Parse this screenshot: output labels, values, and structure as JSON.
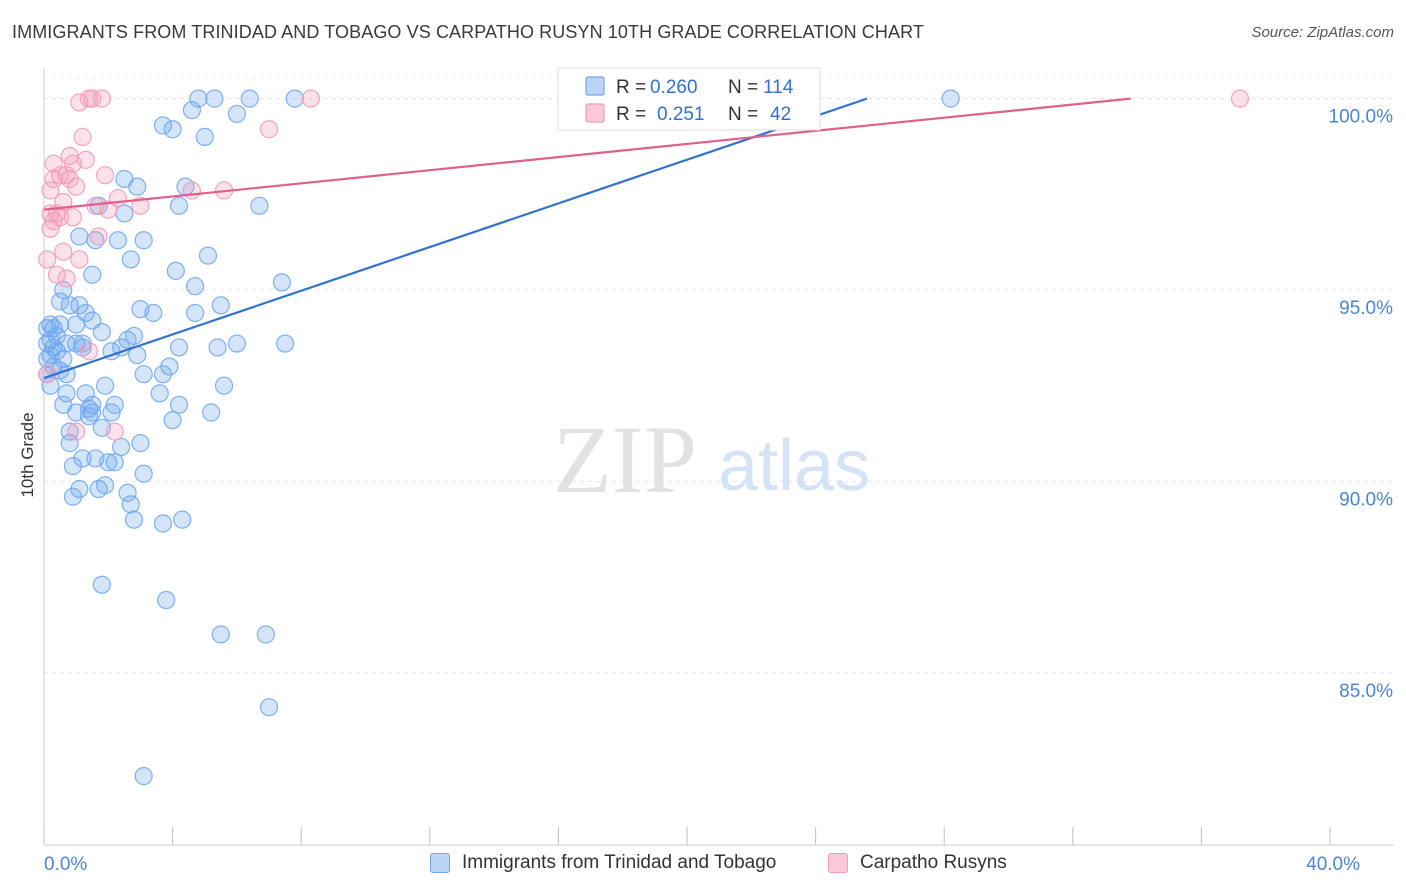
{
  "title": "IMMIGRANTS FROM TRINIDAD AND TOBAGO VS CARPATHO RUSYN 10TH GRADE CORRELATION CHART",
  "source": "Source: ZipAtlas.com",
  "watermark": {
    "zip": "ZIP",
    "atlas": "atlas"
  },
  "legend_box": {
    "rows": [
      {
        "r_label": "R =",
        "r_value": "0.260",
        "n_label": "N =",
        "n_value": "114"
      },
      {
        "r_label": "R =",
        "r_value": "0.251",
        "n_label": "N =",
        "n_value": "42"
      }
    ]
  },
  "chart_data": {
    "type": "scatter",
    "title": "IMMIGRANTS FROM TRINIDAD AND TOBAGO VS CARPATHO RUSYN 10TH GRADE CORRELATION CHART",
    "xlabel": "",
    "ylabel": "10th Grade",
    "xlim": [
      0,
      40
    ],
    "ylim": [
      80.5,
      100.8
    ],
    "x_tick_labels": [
      {
        "value": 0,
        "label": "0.0%"
      },
      {
        "value": 40,
        "label": "40.0%"
      }
    ],
    "y_tick_labels": [
      {
        "value": 100,
        "label": "100.0%"
      },
      {
        "value": 95,
        "label": "95.0%"
      },
      {
        "value": 90,
        "label": "90.0%"
      },
      {
        "value": 85,
        "label": "85.0%"
      }
    ],
    "x_minor_ticks": [
      4,
      8,
      12,
      16,
      20,
      24,
      28,
      32,
      36
    ],
    "series": [
      {
        "name": "Immigrants from Trinidad and Tobago",
        "color": "#6fa8f0",
        "line_color": "#2f72d0",
        "R": 0.26,
        "N": 114,
        "trend": {
          "x0": 0,
          "y0": 92.7,
          "x1": 25.6,
          "y1": 100.0
        },
        "points": [
          [
            0.1,
            94.0
          ],
          [
            0.1,
            93.6
          ],
          [
            0.1,
            93.2
          ],
          [
            0.1,
            92.8
          ],
          [
            0.2,
            94.1
          ],
          [
            0.2,
            93.7
          ],
          [
            0.2,
            93.3
          ],
          [
            0.2,
            92.5
          ],
          [
            0.3,
            94.0
          ],
          [
            0.3,
            93.5
          ],
          [
            0.3,
            93.0
          ],
          [
            0.4,
            93.8
          ],
          [
            0.4,
            93.4
          ],
          [
            0.5,
            94.7
          ],
          [
            0.5,
            94.1
          ],
          [
            0.5,
            92.9
          ],
          [
            0.6,
            95.0
          ],
          [
            0.6,
            93.2
          ],
          [
            0.6,
            92.0
          ],
          [
            0.7,
            93.6
          ],
          [
            0.7,
            92.8
          ],
          [
            0.7,
            92.3
          ],
          [
            0.8,
            94.6
          ],
          [
            0.8,
            91.3
          ],
          [
            0.8,
            91.0
          ],
          [
            0.9,
            90.4
          ],
          [
            0.9,
            89.6
          ],
          [
            1.0,
            94.1
          ],
          [
            1.0,
            93.6
          ],
          [
            1.0,
            91.8
          ],
          [
            1.1,
            96.4
          ],
          [
            1.1,
            94.6
          ],
          [
            1.1,
            89.8
          ],
          [
            1.2,
            93.6
          ],
          [
            1.2,
            93.5
          ],
          [
            1.2,
            90.6
          ],
          [
            1.3,
            94.4
          ],
          [
            1.3,
            92.3
          ],
          [
            1.4,
            91.7
          ],
          [
            1.4,
            91.9
          ],
          [
            1.5,
            95.4
          ],
          [
            1.5,
            94.2
          ],
          [
            1.5,
            92.0
          ],
          [
            1.5,
            91.8
          ],
          [
            1.6,
            96.3
          ],
          [
            1.6,
            90.6
          ],
          [
            1.7,
            97.2
          ],
          [
            1.7,
            89.8
          ],
          [
            1.8,
            93.9
          ],
          [
            1.8,
            91.4
          ],
          [
            1.8,
            87.3
          ],
          [
            1.9,
            92.5
          ],
          [
            1.9,
            89.9
          ],
          [
            2.0,
            90.5
          ],
          [
            2.1,
            93.4
          ],
          [
            2.1,
            91.8
          ],
          [
            2.2,
            90.5
          ],
          [
            2.2,
            92.0
          ],
          [
            2.3,
            96.3
          ],
          [
            2.4,
            93.5
          ],
          [
            2.4,
            90.9
          ],
          [
            2.5,
            97.9
          ],
          [
            2.5,
            97.0
          ],
          [
            2.6,
            93.7
          ],
          [
            2.6,
            89.7
          ],
          [
            2.7,
            95.8
          ],
          [
            2.7,
            89.4
          ],
          [
            2.8,
            89.0
          ],
          [
            2.8,
            93.8
          ],
          [
            2.9,
            97.7
          ],
          [
            2.9,
            93.3
          ],
          [
            3.0,
            94.5
          ],
          [
            3.0,
            91.0
          ],
          [
            3.1,
            96.3
          ],
          [
            3.1,
            90.2
          ],
          [
            3.1,
            82.3
          ],
          [
            3.1,
            92.8
          ],
          [
            3.4,
            94.4
          ],
          [
            3.6,
            92.3
          ],
          [
            3.7,
            99.3
          ],
          [
            3.7,
            92.8
          ],
          [
            3.7,
            88.9
          ],
          [
            3.9,
            93.0
          ],
          [
            4.0,
            99.2
          ],
          [
            4.0,
            91.6
          ],
          [
            4.1,
            95.5
          ],
          [
            4.2,
            97.2
          ],
          [
            4.2,
            92.0
          ],
          [
            4.3,
            89.0
          ],
          [
            4.4,
            97.7
          ],
          [
            4.6,
            99.7
          ],
          [
            4.7,
            95.1
          ],
          [
            4.7,
            94.4
          ],
          [
            4.8,
            100.0
          ],
          [
            5.0,
            99.0
          ],
          [
            5.1,
            95.9
          ],
          [
            5.2,
            91.8
          ],
          [
            5.3,
            100.0
          ],
          [
            5.4,
            93.5
          ],
          [
            5.5,
            94.6
          ],
          [
            5.6,
            92.5
          ],
          [
            6.0,
            99.6
          ],
          [
            6.0,
            93.6
          ],
          [
            6.7,
            97.2
          ],
          [
            6.9,
            86.0
          ],
          [
            7.0,
            84.1
          ],
          [
            7.4,
            95.2
          ],
          [
            7.5,
            93.6
          ],
          [
            28.2,
            100.0
          ],
          [
            5.5,
            86.0
          ],
          [
            7.8,
            100.0
          ],
          [
            3.8,
            86.9
          ],
          [
            4.2,
            93.5
          ],
          [
            6.4,
            100.0
          ]
        ]
      },
      {
        "name": "Carpatho Rusyns",
        "color": "#f29bb8",
        "line_color": "#e0608c",
        "R": 0.251,
        "N": 42,
        "trend": {
          "x0": 0,
          "y0": 97.1,
          "x1": 33.8,
          "y1": 100.0
        },
        "points": [
          [
            0.1,
            95.8
          ],
          [
            0.1,
            92.8
          ],
          [
            0.2,
            97.6
          ],
          [
            0.2,
            97.0
          ],
          [
            0.2,
            96.6
          ],
          [
            0.3,
            98.3
          ],
          [
            0.3,
            97.9
          ],
          [
            0.3,
            96.8
          ],
          [
            0.4,
            97.0
          ],
          [
            0.4,
            95.4
          ],
          [
            0.5,
            98.0
          ],
          [
            0.5,
            96.9
          ],
          [
            0.6,
            97.3
          ],
          [
            0.6,
            96.0
          ],
          [
            0.7,
            98.0
          ],
          [
            0.7,
            95.3
          ],
          [
            0.8,
            98.5
          ],
          [
            0.8,
            97.9
          ],
          [
            0.9,
            98.3
          ],
          [
            0.9,
            96.9
          ],
          [
            1.0,
            91.3
          ],
          [
            1.0,
            97.7
          ],
          [
            1.1,
            99.9
          ],
          [
            1.1,
            95.8
          ],
          [
            1.2,
            99.0
          ],
          [
            1.3,
            98.4
          ],
          [
            1.4,
            100.0
          ],
          [
            1.4,
            93.4
          ],
          [
            1.5,
            100.0
          ],
          [
            1.6,
            97.2
          ],
          [
            1.7,
            96.4
          ],
          [
            1.8,
            100.0
          ],
          [
            1.9,
            98.0
          ],
          [
            2.0,
            97.1
          ],
          [
            2.2,
            91.3
          ],
          [
            2.3,
            97.4
          ],
          [
            3.0,
            97.2
          ],
          [
            4.6,
            97.6
          ],
          [
            5.6,
            97.6
          ],
          [
            7.0,
            99.2
          ],
          [
            37.2,
            100.0
          ],
          [
            8.3,
            100.0
          ]
        ]
      }
    ]
  },
  "bottom_legend": [
    {
      "label": "Immigrants from Trinidad and Tobago",
      "color": "#6fa8f0"
    },
    {
      "label": "Carpatho Rusyns",
      "color": "#f29bb8"
    }
  ]
}
